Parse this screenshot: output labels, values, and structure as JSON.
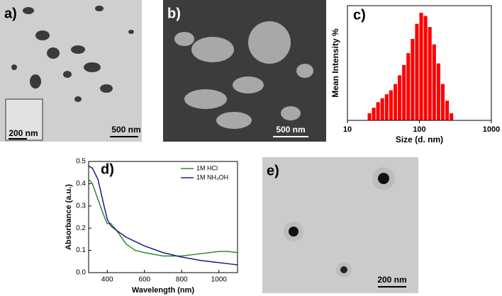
{
  "panels": [
    {
      "label": "a)",
      "scale_bar": "500 nm",
      "inset_scale_bar": "200 nm"
    },
    {
      "label": "b)",
      "scale_bar": "500 nm"
    },
    {
      "label": "c)"
    },
    {
      "label": "d)"
    },
    {
      "label": "e)",
      "scale_bar": "200 nm"
    }
  ],
  "chart_data": [
    {
      "type": "histogram",
      "xlabel": "Size (d. nm)",
      "ylabel": "Mean Intensity %",
      "log_x": true,
      "xlim": [
        10,
        1000
      ],
      "xticks": [
        10,
        100,
        1000
      ],
      "ylim": [
        0,
        14.5
      ],
      "color": "#ff0000",
      "bins": [
        19.1,
        21.9,
        25.1,
        28.8,
        33.1,
        38.0,
        43.7,
        50.1,
        57.5,
        66.1,
        75.9,
        87.1,
        100,
        114.8,
        131.8,
        151.4,
        173.8,
        199.5,
        229.1,
        263.0,
        302.0
      ],
      "values": [
        0.9,
        1.6,
        2.3,
        2.8,
        3.3,
        3.8,
        4.6,
        5.7,
        7.0,
        8.5,
        10.3,
        12.2,
        13.6,
        13.2,
        11.8,
        9.6,
        7.2,
        4.6,
        2.5,
        0.9
      ]
    },
    {
      "type": "line",
      "xlabel": "Wavelength (nm)",
      "ylabel": "Absorbance (a.u.)",
      "xlim": [
        300,
        1100
      ],
      "xticks": [
        400,
        600,
        800,
        1000
      ],
      "ylim": [
        0,
        0.5
      ],
      "yticks": [
        {
          "value": 0,
          "label": "0.0"
        },
        0.1,
        0.2,
        0.3,
        0.4,
        0.5
      ],
      "x": [
        300,
        320,
        350,
        380,
        400,
        420,
        450,
        500,
        550,
        600,
        700,
        800,
        900,
        1000,
        1050,
        1100
      ],
      "series": [
        {
          "name": "1M HCl",
          "color": "#2e8b2e",
          "values": [
            0.42,
            0.4,
            0.33,
            0.26,
            0.22,
            0.22,
            0.19,
            0.13,
            0.1,
            0.09,
            0.075,
            0.075,
            0.085,
            0.095,
            0.095,
            0.09
          ]
        },
        {
          "name": "1M NH₄OH",
          "color": "#1c1c80",
          "values": [
            0.48,
            0.47,
            0.42,
            0.31,
            0.24,
            0.21,
            0.19,
            0.16,
            0.14,
            0.12,
            0.09,
            0.07,
            0.055,
            0.045,
            0.04,
            0.035
          ]
        }
      ]
    }
  ]
}
